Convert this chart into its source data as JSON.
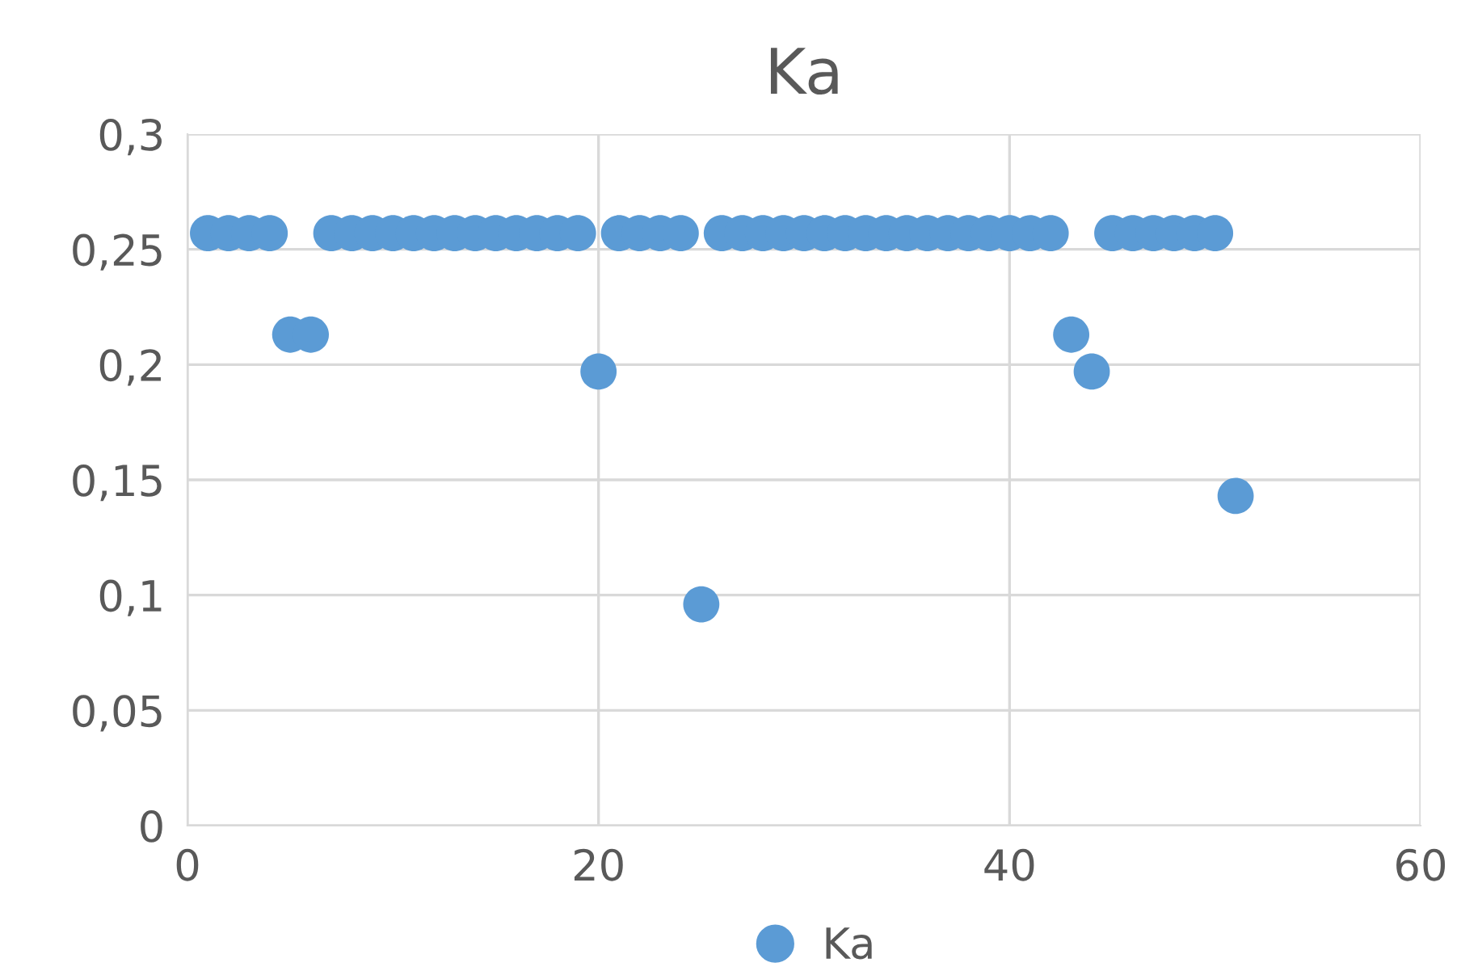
{
  "chart_data": {
    "type": "scatter",
    "title": "Ka",
    "x": [
      1,
      2,
      3,
      4,
      5,
      6,
      7,
      8,
      9,
      10,
      11,
      12,
      13,
      14,
      15,
      16,
      17,
      18,
      19,
      20,
      21,
      22,
      23,
      24,
      25,
      26,
      27,
      28,
      29,
      30,
      31,
      32,
      33,
      34,
      35,
      36,
      37,
      38,
      39,
      40,
      41,
      42,
      43,
      44,
      45,
      46,
      47,
      48,
      49,
      50,
      51
    ],
    "series": [
      {
        "name": "Ka",
        "color": "#5b9bd5",
        "values": [
          0.257,
          0.257,
          0.257,
          0.257,
          0.213,
          0.213,
          0.257,
          0.257,
          0.257,
          0.257,
          0.257,
          0.257,
          0.257,
          0.257,
          0.257,
          0.257,
          0.257,
          0.257,
          0.257,
          0.197,
          0.257,
          0.257,
          0.257,
          0.257,
          0.096,
          0.257,
          0.257,
          0.257,
          0.257,
          0.257,
          0.257,
          0.257,
          0.257,
          0.257,
          0.257,
          0.257,
          0.257,
          0.257,
          0.257,
          0.257,
          0.257,
          0.257,
          0.213,
          0.197,
          0.257,
          0.257,
          0.257,
          0.257,
          0.257,
          0.257,
          0.143
        ]
      }
    ],
    "xlim": [
      0,
      60
    ],
    "xticks": [
      0,
      20,
      40,
      60
    ],
    "ylim": [
      0,
      0.3
    ],
    "yticks": [
      {
        "value": 0,
        "label": "0"
      },
      {
        "value": 0.05,
        "label": "0,05"
      },
      {
        "value": 0.1,
        "label": "0,1"
      },
      {
        "value": 0.15,
        "label": "0,15"
      },
      {
        "value": 0.2,
        "label": "0,2"
      },
      {
        "value": 0.25,
        "label": "0,25"
      },
      {
        "value": 0.3,
        "label": "0,3"
      }
    ],
    "grid": true,
    "legend": "bottom",
    "marker": "circle"
  }
}
